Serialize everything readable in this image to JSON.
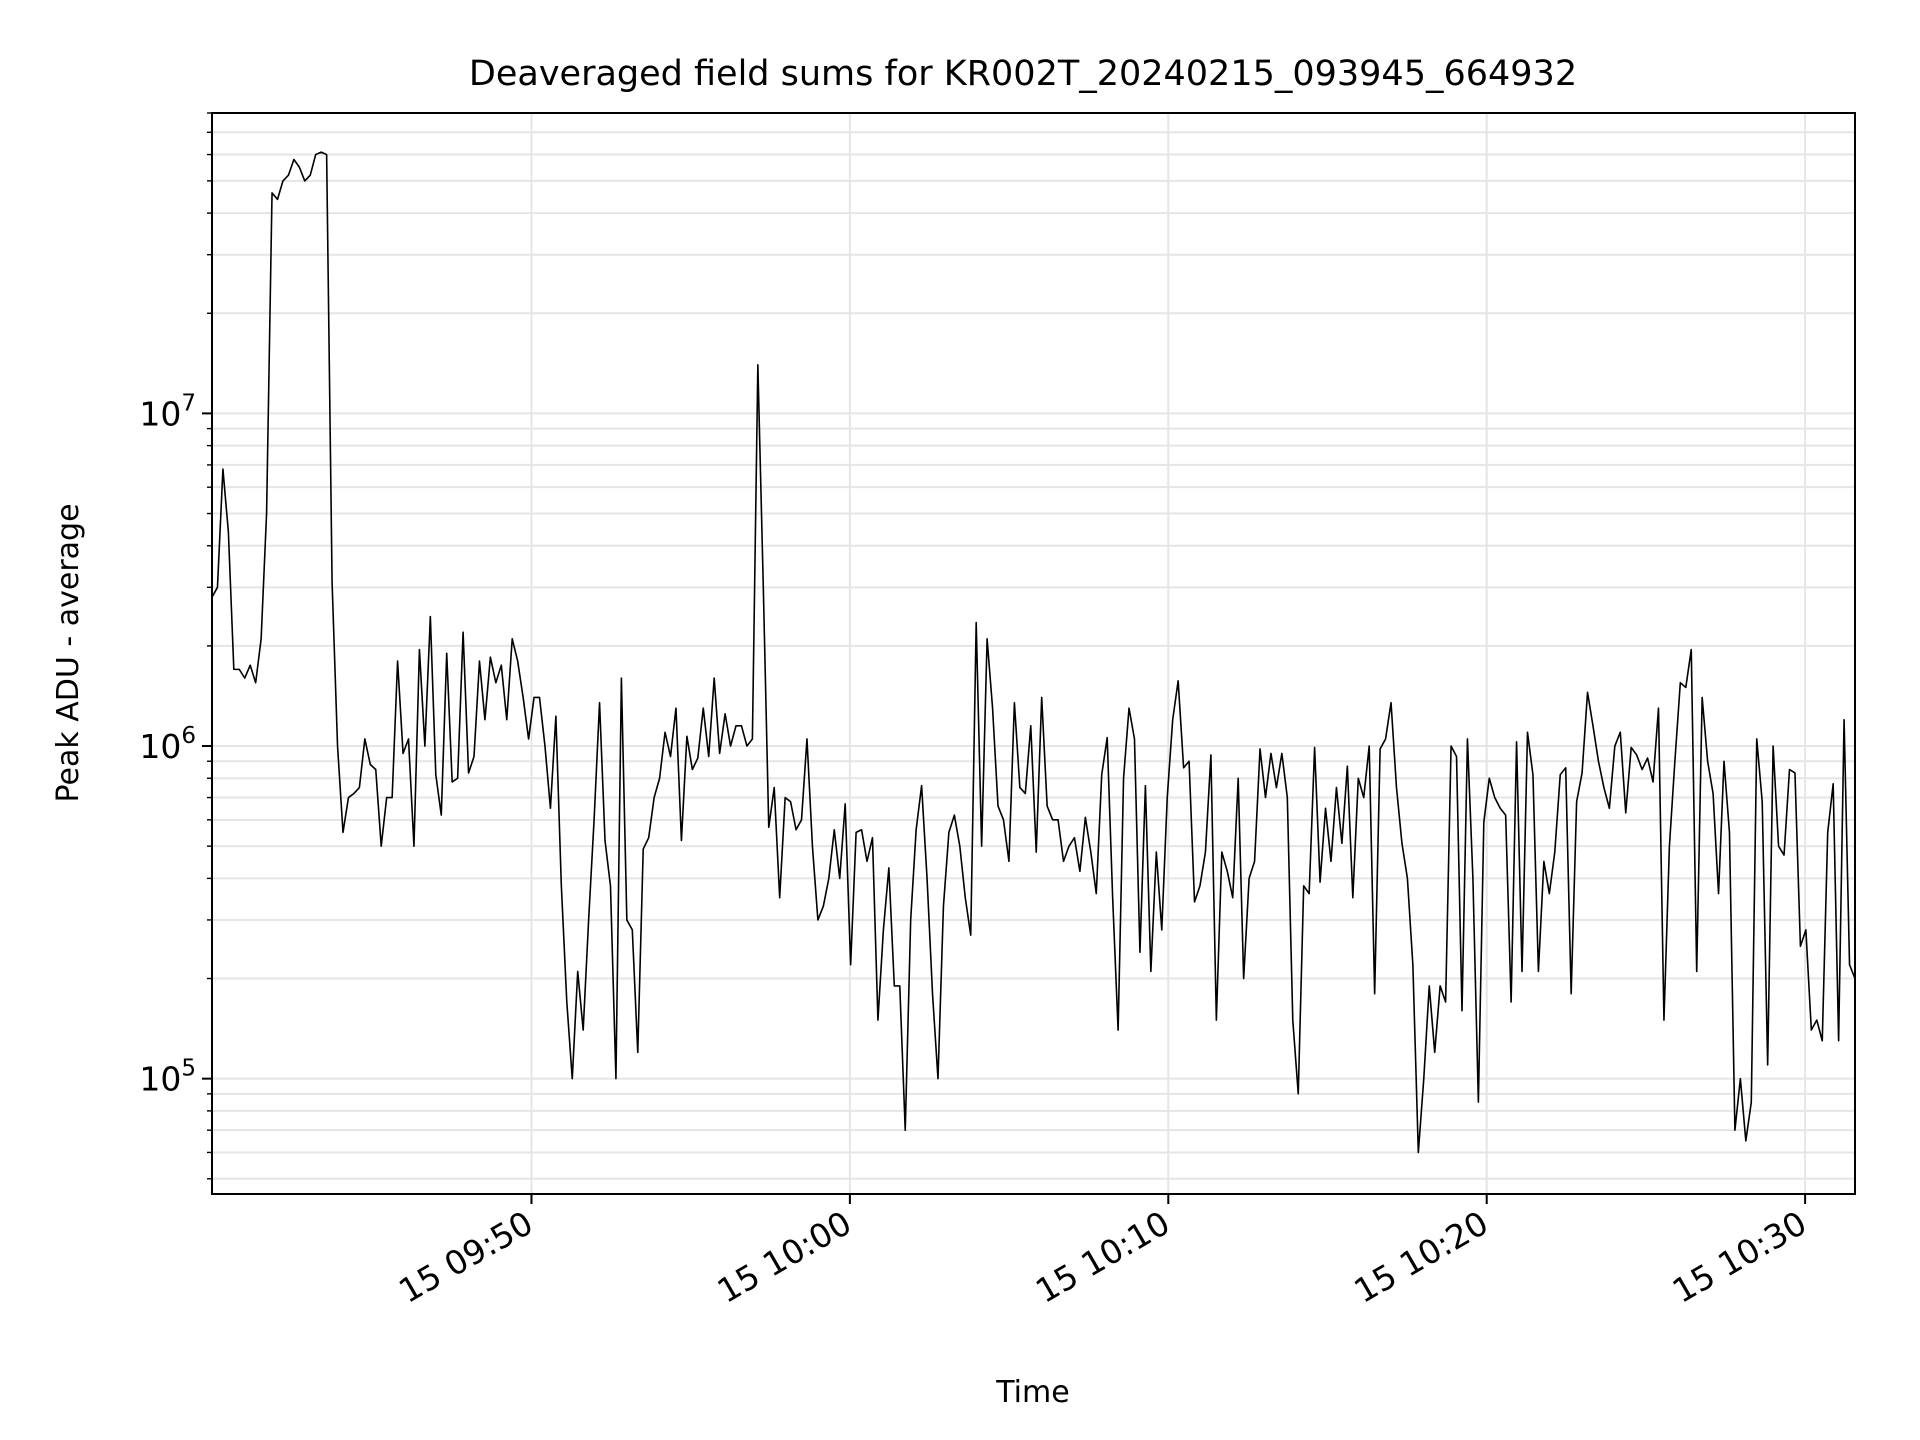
{
  "chart_data": {
    "type": "line",
    "title": "Deaveraged field sums for KR002T_20240215_093945_664932",
    "xlabel": "Time",
    "ylabel": "Peak ADU - average",
    "yscale": "log",
    "ylim": [
      45000,
      80000000
    ],
    "xlim": [
      "2024-02-15 09:39:58",
      "2024-02-15 10:31:34"
    ],
    "grid": true,
    "legend": "none",
    "x_ticks": [
      {
        "t": "2024-02-15 09:50:00",
        "label": "15 09:50"
      },
      {
        "t": "2024-02-15 10:00:00",
        "label": "15 10:00"
      },
      {
        "t": "2024-02-15 10:10:00",
        "label": "15 10:10"
      },
      {
        "t": "2024-02-15 10:20:00",
        "label": "15 10:20"
      },
      {
        "t": "2024-02-15 10:30:00",
        "label": "15 10:30"
      }
    ],
    "y_ticks": [
      {
        "v": 100000,
        "base": "10",
        "exp": "5"
      },
      {
        "v": 1000000,
        "base": "10",
        "exp": "6"
      },
      {
        "v": 10000000,
        "base": "10",
        "exp": "7"
      }
    ],
    "colors": {
      "line": "#000000",
      "grid": "#e5e5e5",
      "axes": "#000000"
    },
    "series": [
      {
        "start": "2024-02-15 09:39:58",
        "end": "2024-02-15 10:31:34",
        "values": [
          2800000,
          3000000,
          6800000,
          4400000,
          1700000,
          1700000,
          1600000,
          1750000,
          1550000,
          2100000,
          5000000,
          46000000,
          44000000,
          50000000,
          52000000,
          58000000,
          55000000,
          50000000,
          52000000,
          60000000,
          61000000,
          60000000,
          3100000,
          1000000,
          550000,
          700000,
          720000,
          750000,
          1050000,
          880000,
          850000,
          500000,
          700000,
          700000,
          1800000,
          950000,
          1050000,
          500000,
          1950000,
          1000000,
          2450000,
          820000,
          620000,
          1900000,
          780000,
          800000,
          2200000,
          830000,
          930000,
          1800000,
          1200000,
          1850000,
          1550000,
          1750000,
          1200000,
          2100000,
          1800000,
          1400000,
          1050000,
          1400000,
          1400000,
          1000000,
          650000,
          1230000,
          380000,
          170000,
          100000,
          210000,
          140000,
          300000,
          600000,
          1350000,
          520000,
          380000,
          100000,
          1600000,
          300000,
          280000,
          120000,
          490000,
          530000,
          700000,
          800000,
          1100000,
          930000,
          1300000,
          520000,
          1070000,
          850000,
          920000,
          1300000,
          930000,
          1600000,
          950000,
          1250000,
          1000000,
          1150000,
          1150000,
          1000000,
          1050000,
          14000000,
          3000000,
          570000,
          750000,
          350000,
          700000,
          680000,
          560000,
          600000,
          1050000,
          500000,
          300000,
          330000,
          400000,
          560000,
          400000,
          670000,
          220000,
          550000,
          560000,
          450000,
          530000,
          150000,
          280000,
          430000,
          190000,
          190000,
          70000,
          300000,
          560000,
          760000,
          400000,
          180000,
          100000,
          330000,
          550000,
          620000,
          500000,
          350000,
          270000,
          2350000,
          500000,
          2100000,
          1300000,
          660000,
          600000,
          450000,
          1350000,
          750000,
          720000,
          1150000,
          480000,
          1400000,
          660000,
          600000,
          600000,
          450000,
          500000,
          530000,
          420000,
          610000,
          480000,
          360000,
          820000,
          1060000,
          350000,
          140000,
          800000,
          1300000,
          1050000,
          240000,
          760000,
          210000,
          480000,
          280000,
          700000,
          1200000,
          1570000,
          860000,
          900000,
          340000,
          380000,
          480000,
          940000,
          150000,
          480000,
          420000,
          350000,
          800000,
          200000,
          400000,
          450000,
          980000,
          700000,
          950000,
          750000,
          950000,
          700000,
          150000,
          90000,
          380000,
          360000,
          990000,
          390000,
          650000,
          450000,
          750000,
          510000,
          870000,
          350000,
          800000,
          700000,
          1000000,
          180000,
          980000,
          1050000,
          1350000,
          750000,
          510000,
          400000,
          220000,
          60000,
          100000,
          190000,
          120000,
          190000,
          170000,
          1000000,
          930000,
          160000,
          1050000,
          400000,
          85000,
          590000,
          800000,
          700000,
          650000,
          620000,
          170000,
          1030000,
          210000,
          1100000,
          820000,
          210000,
          450000,
          360000,
          480000,
          820000,
          860000,
          180000,
          680000,
          830000,
          1450000,
          1150000,
          900000,
          750000,
          650000,
          1000000,
          1100000,
          630000,
          990000,
          940000,
          850000,
          920000,
          780000,
          1300000,
          150000,
          500000,
          900000,
          1550000,
          1500000,
          1950000,
          210000,
          1400000,
          900000,
          720000,
          360000,
          900000,
          550000,
          70000,
          100000,
          65000,
          85000,
          1050000,
          680000,
          110000,
          1000000,
          500000,
          470000,
          850000,
          830000,
          250000,
          280000,
          140000,
          150000,
          130000,
          550000,
          770000,
          130000,
          1200000,
          220000,
          200000
        ]
      }
    ]
  }
}
